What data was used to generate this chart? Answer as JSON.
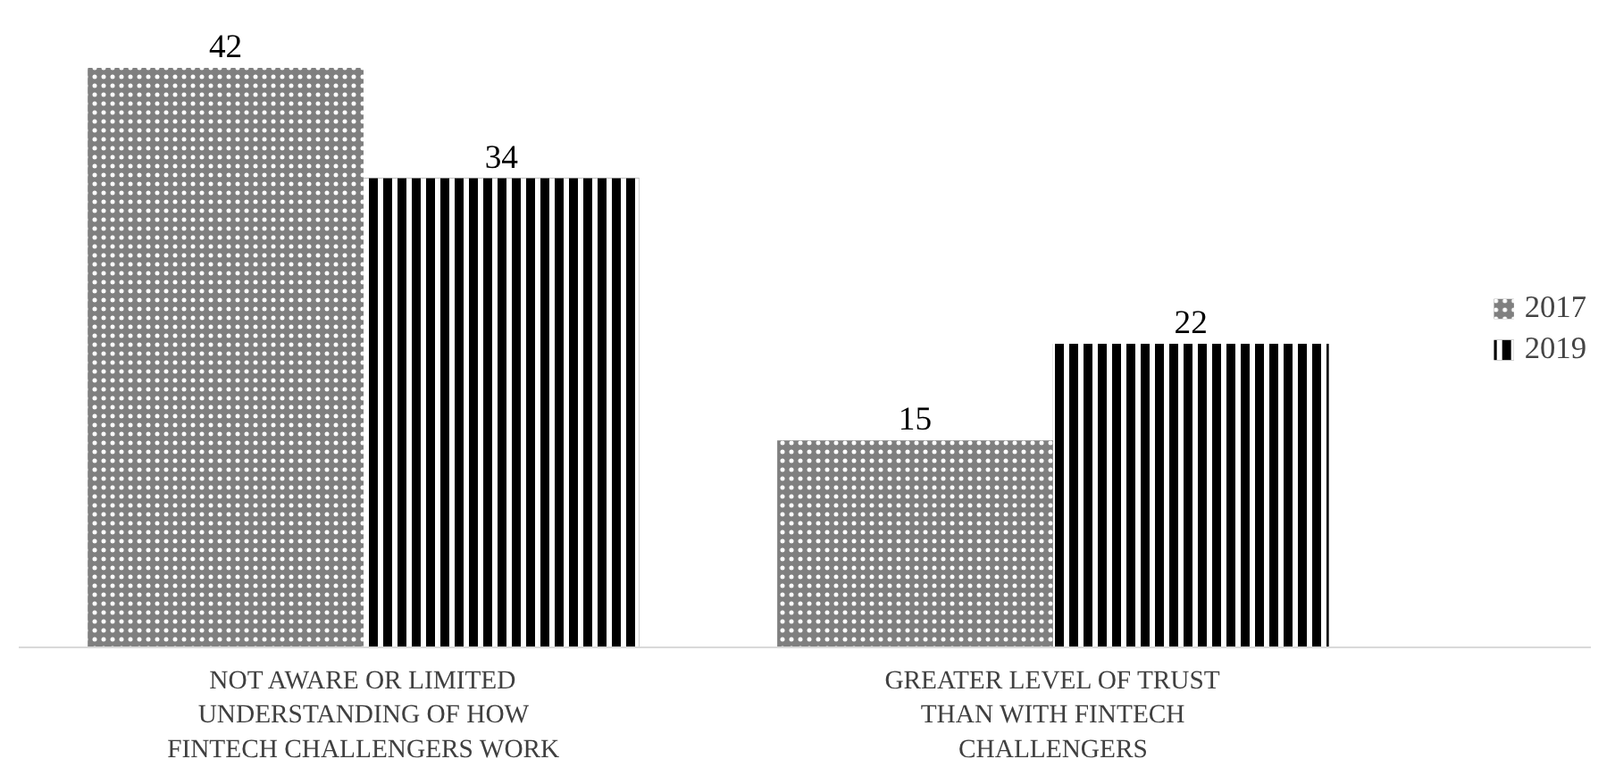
{
  "chart_data": {
    "type": "bar",
    "categories": [
      "NOT AWARE OR LIMITED UNDERSTANDING OF HOW FINTECH CHALLENGERS WORK",
      "GREATER LEVEL OF TRUST THAN WITH FINTECH CHALLENGERS"
    ],
    "series": [
      {
        "name": "2017",
        "color": "#7f7f7f",
        "values": [
          42,
          15
        ]
      },
      {
        "name": "2019",
        "color": "#000000",
        "values": [
          34,
          22
        ]
      }
    ],
    "data_labels": true,
    "legend": "right"
  }
}
